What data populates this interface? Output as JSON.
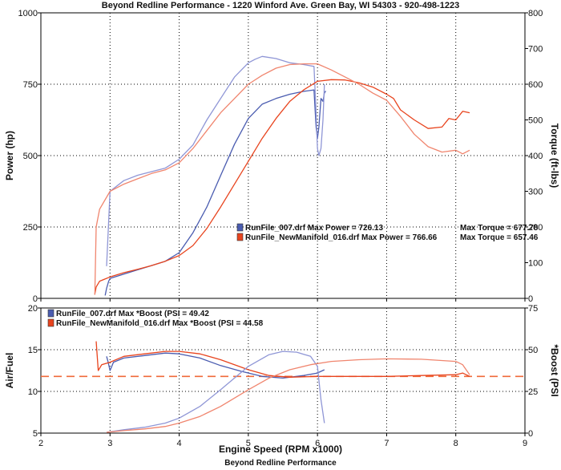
{
  "header": {
    "title": "Beyond Redline Performance - 1220 Winford Ave. Green Bay, WI 54303 - 920-498-1223",
    "footer": "Beyond Redline Performance"
  },
  "colors": {
    "run007_main": "#4a5cb0",
    "run007_light": "#8f96d6",
    "run016_main": "#e8441e",
    "run016_light": "#f0856e",
    "afr_reference": "#f06a3a"
  },
  "chart_data": [
    {
      "type": "line",
      "panel": "top",
      "xlabel": "",
      "ylabel": "Power (hp)",
      "y2label": "Torque (ft-lbs)",
      "xlim": [
        2,
        9
      ],
      "xticks": [
        2,
        3,
        4,
        5,
        6,
        7,
        8,
        9
      ],
      "ylim": [
        0,
        1000
      ],
      "yticks": [
        0,
        250,
        500,
        750,
        1000
      ],
      "y2lim": [
        0,
        800
      ],
      "y2ticks": [
        0,
        100,
        200,
        300,
        400,
        500,
        600,
        700,
        800
      ],
      "grid": true,
      "legend_position": "center-right",
      "legend": [
        {
          "label": "RunFile_007.drf Max Power = 726.13",
          "torque_label": "Max Torque = 677.78",
          "color_key": "run007_main"
        },
        {
          "label": "RunFile_NewManifold_016.drf Max Power = 766.66",
          "torque_label": "Max Torque = 657.46",
          "color_key": "run016_main"
        }
      ],
      "series": [
        {
          "name": "RunFile_007.drf Power",
          "axis": "left",
          "color_key": "run007_main",
          "x": [
            2.93,
            2.95,
            2.98,
            3.0,
            3.2,
            3.4,
            3.6,
            3.8,
            4.0,
            4.2,
            4.4,
            4.6,
            4.8,
            5.0,
            5.2,
            5.4,
            5.6,
            5.8,
            5.95,
            5.98,
            6.0,
            6.02,
            6.05,
            6.08,
            6.1,
            6.12
          ],
          "y": [
            10,
            35,
            60,
            70,
            85,
            100,
            115,
            130,
            160,
            230,
            320,
            430,
            540,
            630,
            680,
            700,
            715,
            725,
            730,
            600,
            560,
            600,
            700,
            690,
            720,
            726
          ]
        },
        {
          "name": "RunFile_007.drf Torque",
          "axis": "right",
          "color_key": "run007_light",
          "x": [
            2.95,
            3.0,
            3.2,
            3.4,
            3.6,
            3.8,
            4.0,
            4.2,
            4.4,
            4.6,
            4.8,
            5.0,
            5.1,
            5.2,
            5.4,
            5.6,
            5.8,
            5.95,
            5.98,
            6.0,
            6.02,
            6.05,
            6.08,
            6.1
          ],
          "y": [
            90,
            300,
            330,
            345,
            355,
            365,
            390,
            430,
            500,
            560,
            620,
            660,
            670,
            678,
            672,
            660,
            655,
            650,
            520,
            420,
            400,
            420,
            500,
            600
          ]
        },
        {
          "name": "RunFile_NewManifold_016.drf Power",
          "axis": "left",
          "color_key": "run016_main",
          "x": [
            2.78,
            2.8,
            2.85,
            3.0,
            3.2,
            3.4,
            3.6,
            3.8,
            4.0,
            4.2,
            4.4,
            4.6,
            4.8,
            5.0,
            5.2,
            5.4,
            5.6,
            5.8,
            6.0,
            6.2,
            6.4,
            6.6,
            6.8,
            7.0,
            7.1,
            7.2,
            7.4,
            7.6,
            7.8,
            7.9,
            8.0,
            8.1,
            8.2
          ],
          "y": [
            15,
            40,
            60,
            75,
            90,
            102,
            115,
            130,
            150,
            185,
            245,
            320,
            400,
            480,
            560,
            630,
            690,
            730,
            760,
            766,
            765,
            755,
            740,
            715,
            700,
            660,
            625,
            595,
            600,
            630,
            625,
            655,
            650
          ]
        },
        {
          "name": "RunFile_NewManifold_016.drf Torque",
          "axis": "right",
          "color_key": "run016_light",
          "x": [
            2.78,
            2.8,
            2.85,
            3.0,
            3.2,
            3.4,
            3.6,
            3.8,
            4.0,
            4.2,
            4.4,
            4.6,
            4.8,
            5.0,
            5.2,
            5.4,
            5.6,
            5.8,
            6.0,
            6.2,
            6.4,
            6.6,
            6.8,
            7.0,
            7.2,
            7.4,
            7.6,
            7.8,
            8.0,
            8.1,
            8.2
          ],
          "y": [
            10,
            200,
            250,
            300,
            320,
            335,
            350,
            360,
            380,
            420,
            470,
            520,
            560,
            600,
            625,
            645,
            655,
            657,
            657,
            640,
            620,
            600,
            575,
            555,
            510,
            460,
            425,
            410,
            415,
            405,
            415
          ]
        }
      ]
    },
    {
      "type": "line",
      "panel": "bottom",
      "xlabel": "Engine Speed (RPM x1000)",
      "ylabel": "Air/Fuel",
      "y2label": "*Boost (PSI",
      "xlim": [
        2,
        9
      ],
      "xticks": [
        2,
        3,
        4,
        5,
        6,
        7,
        8,
        9
      ],
      "ylim": [
        5,
        20
      ],
      "yticks": [
        5,
        10,
        15,
        20
      ],
      "y2lim": [
        0,
        75
      ],
      "y2ticks": [
        0,
        25,
        50,
        75
      ],
      "grid": true,
      "legend_position": "top-left",
      "legend": [
        {
          "label": "RunFile_007.drf Max *Boost (PSI = 49.42",
          "color_key": "run007_main"
        },
        {
          "label": "RunFile_NewManifold_016.drf Max *Boost (PSI = 44.58",
          "color_key": "run016_main"
        }
      ],
      "reference_line": {
        "axis": "left",
        "y": 11.8,
        "style": "dashed",
        "color_key": "afr_reference"
      },
      "series": [
        {
          "name": "RunFile_007.drf Air/Fuel",
          "axis": "left",
          "color_key": "run007_main",
          "x": [
            2.95,
            2.97,
            3.0,
            3.05,
            3.2,
            3.5,
            3.8,
            4.0,
            4.3,
            4.6,
            4.9,
            5.2,
            5.5,
            5.8,
            6.0,
            6.05,
            6.1
          ],
          "y": [
            14.2,
            13.6,
            12.5,
            13.5,
            14.0,
            14.3,
            14.6,
            14.5,
            14.0,
            13.1,
            12.4,
            11.8,
            11.6,
            11.9,
            12.2,
            12.4,
            12.6
          ]
        },
        {
          "name": "RunFile_NewManifold_016.drf Air/Fuel",
          "axis": "left",
          "color_key": "run016_main",
          "x": [
            2.8,
            2.83,
            2.88,
            3.0,
            3.2,
            3.5,
            3.8,
            4.0,
            4.3,
            4.6,
            5.0,
            5.3,
            5.6,
            6.0,
            6.5,
            7.0,
            7.5,
            8.0,
            8.1,
            8.2
          ],
          "y": [
            16.0,
            12.5,
            13.2,
            13.5,
            14.2,
            14.5,
            14.8,
            14.8,
            14.5,
            13.8,
            12.6,
            11.9,
            11.7,
            11.8,
            11.8,
            11.8,
            11.9,
            12.0,
            12.2,
            11.8
          ]
        },
        {
          "name": "RunFile_007.drf *Boost",
          "axis": "right",
          "color_key": "run007_light",
          "x": [
            2.95,
            3.2,
            3.5,
            3.8,
            4.0,
            4.3,
            4.6,
            5.0,
            5.3,
            5.5,
            5.7,
            5.9,
            6.0,
            6.05,
            6.1
          ],
          "y": [
            0.5,
            2,
            3.5,
            6,
            9,
            16,
            26,
            40,
            47,
            49,
            48.5,
            46,
            40,
            20,
            6
          ]
        },
        {
          "name": "RunFile_NewManifold_016.drf *Boost",
          "axis": "right",
          "color_key": "run016_light",
          "x": [
            2.95,
            3.2,
            3.5,
            3.8,
            4.0,
            4.3,
            4.6,
            5.0,
            5.3,
            5.6,
            5.9,
            6.2,
            6.6,
            7.0,
            7.5,
            8.0,
            8.1,
            8.2
          ],
          "y": [
            0.5,
            1.5,
            2.5,
            4,
            6,
            10,
            16,
            26,
            33,
            38,
            41,
            43,
            44,
            44.5,
            44.3,
            43,
            41,
            35
          ]
        }
      ]
    }
  ]
}
